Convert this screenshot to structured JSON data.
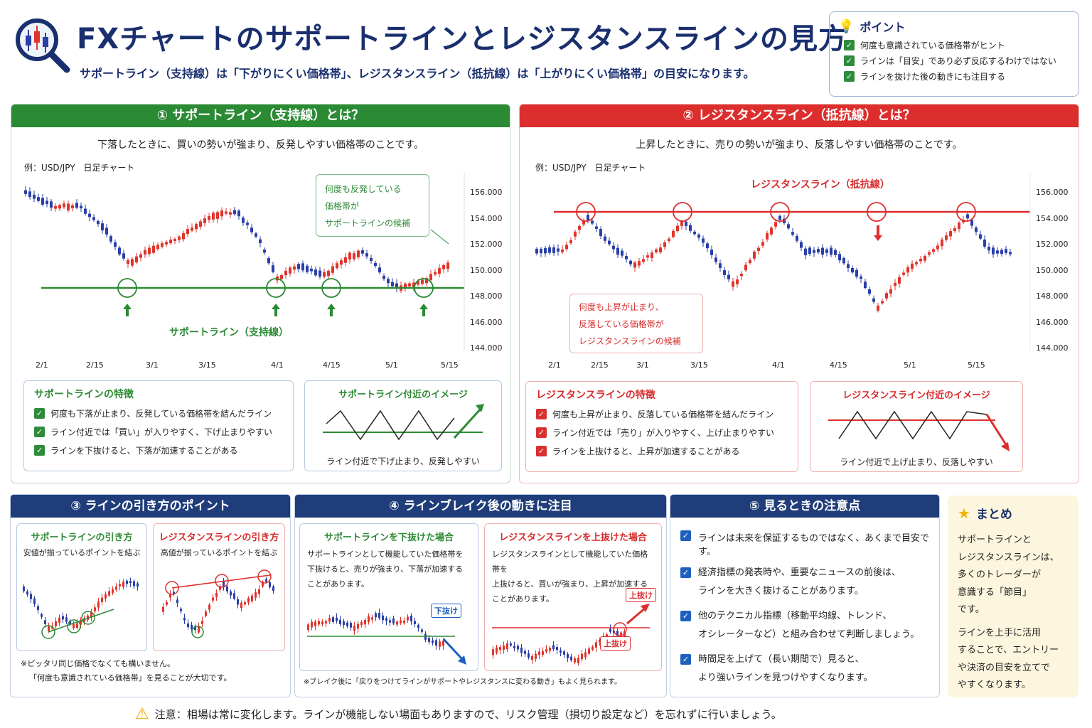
{
  "header": {
    "title": "FXチャートのサポートラインとレジスタンスラインの見方",
    "subtitle": "サポートライン（支持線）は「下がりにくい価格帯」、レジスタンスライン（抵抗線）は「上がりにくい価格帯」の目安になります。"
  },
  "points": {
    "title": "ポイント",
    "items": [
      "何度も意識されている価格帯がヒント",
      "ラインは「目安」であり必ず反応するわけではない",
      "ラインを抜けた後の動きにも注目する"
    ]
  },
  "support": {
    "heading": "① サポートライン（支持線）とは？",
    "desc": "下落したときに、買いの勢いが強まり、反発しやすい価格帯のことです。",
    "example": "例：USD/JPY　日足チャート",
    "callout": [
      "何度も反発している",
      "価格帯が",
      "サポートラインの候補"
    ],
    "line_label": "サポートライン（支持線）",
    "yticks": [
      "156.000",
      "154.000",
      "152.000",
      "150.000",
      "148.000",
      "146.000",
      "144.000"
    ],
    "xticks": [
      "2/1",
      "2/15",
      "3/1",
      "3/15",
      "4/1",
      "4/15",
      "5/1",
      "5/15"
    ],
    "feat_title": "サポートラインの特徴",
    "feats": [
      "何度も下落が止まり、反発している価格帯を結んだライン",
      "ライン付近では「買い」が入りやすく、下げ止まりやすい",
      "ラインを下抜けると、下落が加速することがある"
    ],
    "img_title": "サポートライン付近のイメージ",
    "img_caption": "ライン付近で下げ止まり、反発しやすい"
  },
  "resistance": {
    "heading": "② レジスタンスライン（抵抗線）とは？",
    "desc": "上昇したときに、売りの勢いが強まり、反落しやすい価格帯のことです。",
    "example": "例：USD/JPY　日足チャート",
    "line_label": "レジスタンスライン（抵抗線）",
    "callout": [
      "何度も上昇が止まり、",
      "反落している価格帯が",
      "レジスタンスラインの候補"
    ],
    "yticks": [
      "156.000",
      "154.000",
      "152.000",
      "150.000",
      "148.000",
      "146.000",
      "144.000"
    ],
    "xticks": [
      "2/1",
      "2/15",
      "3/1",
      "3/15",
      "4/1",
      "4/15",
      "5/1",
      "5/15"
    ],
    "feat_title": "レジスタンスラインの特徴",
    "feats": [
      "何度も上昇が止まり、反落している価格帯を結んだライン",
      "ライン付近では「売り」が入りやすく、上げ止まりやすい",
      "ラインを上抜けると、上昇が加速することがある"
    ],
    "img_title": "レジスタンスライン付近のイメージ",
    "img_caption": "ライン付近で上げ止まり、反落しやすい"
  },
  "sec3": {
    "heading": "③ ラインの引き方のポイント",
    "left_title": "サポートラインの引き方",
    "left_desc": "安値が揃っているポイントを結ぶ",
    "right_title": "レジスタンスラインの引き方",
    "right_desc": "高値が揃っているポイントを結ぶ",
    "note1": "※ピッタリ同じ価格でなくても構いません。",
    "note2": "「何度も意識されている価格帯」を見ることが大切です。"
  },
  "sec4": {
    "heading": "④ ラインブレイク後の動きに注目",
    "left_title": "サポートラインを下抜けた場合",
    "left_lines": [
      "サポートラインとして機能していた価格帯を",
      "下抜けると、売りが強まり、下落が加速する",
      "ことがあります。"
    ],
    "left_tag": "下抜け",
    "right_title": "レジスタンスラインを上抜けた場合",
    "right_lines": [
      "レジスタンスラインとして機能していた価格帯を",
      "上抜けると、買いが強まり、上昇が加速する",
      "ことがあります。"
    ],
    "right_tag1": "上抜け",
    "right_tag2": "上抜け",
    "note": "※ブレイク後に「戻りをつけてラインがサポートやレジスタンスに変わる動き」もよく見られます。"
  },
  "sec5": {
    "heading": "⑤ 見るときの注意点",
    "items": [
      [
        "ラインは未来を保証するものではなく、あくまで目安です。"
      ],
      [
        "経済指標の発表時や、重要なニュースの前後は、",
        "ラインを大きく抜けることがあります。"
      ],
      [
        "他のテクニカル指標（移動平均線、トレンド、",
        "オシレーターなど）と組み合わせて判断しましょう。"
      ],
      [
        "時間足を上げて（長い期間で）見ると、",
        "より強いラインを見つけやすくなります。"
      ]
    ]
  },
  "summary": {
    "title": "まとめ",
    "p1": [
      "サポートラインと",
      "レジスタンスラインは、",
      "多くのトレーダーが",
      "意識する「節目」",
      "です。"
    ],
    "p2": [
      "ラインを上手に活用",
      "することで、エントリー",
      "や決済の目安を立てで",
      "やすくなります。"
    ]
  },
  "footer": {
    "warning": "注意：相場は常に変化します。ラインが機能しない場面もありますので、リスク管理（損切り設定など）を忘れずに行いましょう。"
  },
  "colors": {
    "navy": "#1a2f6e",
    "green": "#2b8a34",
    "red": "#dd2e2e",
    "candle_up": "#e0342c",
    "candle_down": "#2a3fa8"
  }
}
